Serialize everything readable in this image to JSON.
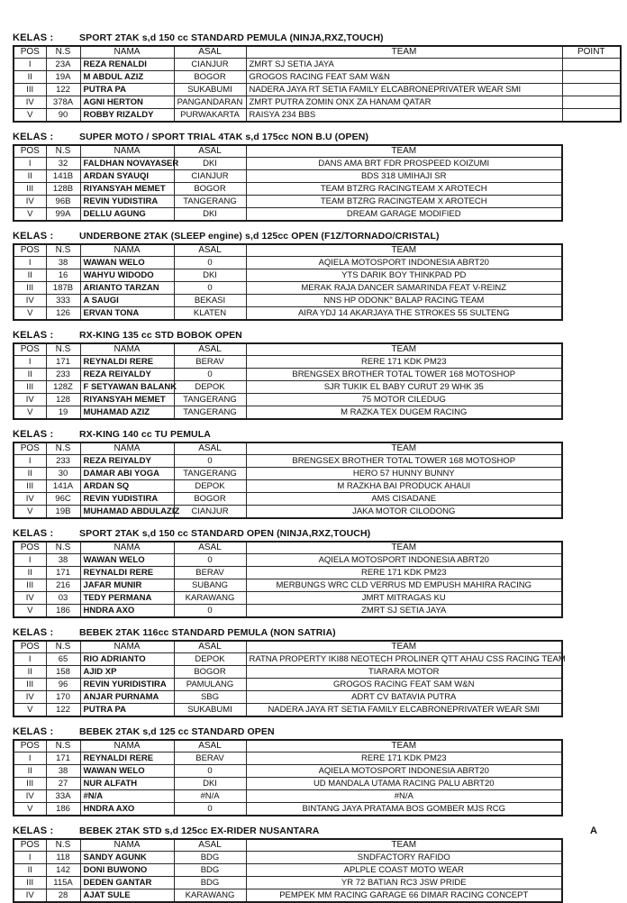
{
  "page": {
    "kelas_label": "KELAS :",
    "headers": [
      "POS",
      "N.S",
      "NAMA",
      "ASAL",
      "TEAM"
    ],
    "point_header": "POINT"
  },
  "row_fields": [
    "pos",
    "ns",
    "nama",
    "asal",
    "team"
  ],
  "sections": [
    {
      "title": "SPORT 2TAK s,d 150 cc STANDARD PEMULA (NINJA,RXZ,TOUCH)",
      "has_point": true,
      "team_align": "left",
      "rows": [
        [
          "I",
          "23A",
          "REZA RENALDI",
          "CIANJUR",
          "ZMRT SJ SETIA JAYA"
        ],
        [
          "II",
          "19A",
          "M ABDUL AZIZ",
          "BOGOR",
          "GROGOS RACING FEAT SAM W&N"
        ],
        [
          "III",
          "122",
          "PUTRA PA",
          "SUKABUMI",
          "NADERA JAYA RT SETIA FAMILY ELCABRONEPRIVATER WEAR SMI"
        ],
        [
          "IV",
          "378A",
          "AGNI HERTON",
          "PANGANDARAN",
          "ZMRT PUTRA ZOMIN ONX ZA HANAM QATAR"
        ],
        [
          "V",
          "90",
          "ROBBY RIZALDY",
          "PURWAKARTA",
          "RAISYA 234 BBS"
        ]
      ]
    },
    {
      "title": "SUPER MOTO / SPORT TRIAL 4TAK s,d 175cc NON B.U (OPEN)",
      "has_point": false,
      "team_align": "center",
      "rows": [
        [
          "I",
          "32",
          "FALDHAN NOVAYASER",
          "DKI",
          "DANS AMA BRT FDR PROSPEED KOIZUMI"
        ],
        [
          "II",
          "141B",
          "ARDAN SYAUQI",
          "CIANJUR",
          "BDS 318 UMIHAJI SR"
        ],
        [
          "III",
          "128B",
          "RIYANSYAH MEMET",
          "BOGOR",
          "TEAM BTZRG RACINGTEAM X AROTECH"
        ],
        [
          "IV",
          "96B",
          "REVIN YUDISTIRA",
          "TANGERANG",
          "TEAM BTZRG RACINGTEAM X AROTECH"
        ],
        [
          "V",
          "99A",
          "DELLU AGUNG",
          "DKI",
          "DREAM GARAGE MODIFIED"
        ]
      ]
    },
    {
      "title": "UNDERBONE 2TAK (SLEEP engine) s,d 125cc OPEN (F1Z/TORNADO/CRISTAL)",
      "has_point": false,
      "team_align": "center",
      "rows": [
        [
          "I",
          "38",
          "WAWAN WELO",
          "0",
          "AQIELA MOTOSPORT INDONESIA ABRT20"
        ],
        [
          "II",
          "16",
          "WAHYU WIDODO",
          "DKI",
          "YTS DARIK BOY THINKPAD PD"
        ],
        [
          "III",
          "187B",
          "ARIANTO TARZAN",
          "0",
          "MERAK RAJA DANCER SAMARINDA FEAT V-REINZ"
        ],
        [
          "IV",
          "333",
          "A SAUGI",
          "BEKASI",
          "NNS HP ODONK\" BALAP RACING TEAM"
        ],
        [
          "V",
          "126",
          "ERVAN TONA",
          "KLATEN",
          "AIRA YDJ 14 AKARJAYA THE STROKES 55 SULTENG"
        ]
      ]
    },
    {
      "title": "RX-KING 135 cc STD BOBOK OPEN",
      "has_point": false,
      "team_align": "center",
      "rows": [
        [
          "I",
          "171",
          "REYNALDI RERE",
          "BERAV",
          "RERE 171 KDK PM23"
        ],
        [
          "II",
          "233",
          "REZA REIYALDY",
          "0",
          "BRENGSEX BROTHER TOTAL TOWER 168 MOTOSHOP"
        ],
        [
          "III",
          "128Z",
          "F SETYAWAN BALANK",
          "DEPOK",
          "SJR TUKIK EL BABY CURUT 29 WHK 35"
        ],
        [
          "IV",
          "128",
          "RIYANSYAH MEMET",
          "TANGERANG",
          "75 MOTOR CILEDUG"
        ],
        [
          "V",
          "19",
          "MUHAMAD AZIZ",
          "TANGERANG",
          "M RAZKA TEX DUGEM RACING"
        ]
      ]
    },
    {
      "title": "RX-KING 140 cc TU PEMULA",
      "has_point": false,
      "team_align": "center",
      "rows": [
        [
          "I",
          "233",
          "REZA REIYALDY",
          "0",
          "BRENGSEX BROTHER TOTAL TOWER 168 MOTOSHOP"
        ],
        [
          "II",
          "30",
          "DAMAR ABI YOGA",
          "TANGERANG",
          "HERO 57 HUNNY BUNNY"
        ],
        [
          "III",
          "141A",
          "ARDAN SQ",
          "DEPOK",
          "M RAZKHA BAI PRODUCK AHAUI"
        ],
        [
          "IV",
          "96C",
          "REVIN YUDISTIRA",
          "BOGOR",
          "AMS CISADANE"
        ],
        [
          "V",
          "19B",
          "MUHAMAD ABDULAZIZ",
          "CIANJUR",
          "JAKA MOTOR CILODONG"
        ]
      ]
    },
    {
      "title": "SPORT 2TAK s,d 150 cc STANDARD OPEN (NINJA,RXZ,TOUCH)",
      "has_point": false,
      "team_align": "center",
      "rows": [
        [
          "I",
          "38",
          "WAWAN WELO",
          "0",
          "AQIELA MOTOSPORT INDONESIA ABRT20"
        ],
        [
          "II",
          "171",
          "REYNALDI RERE",
          "BERAV",
          "RERE 171 KDK PM23"
        ],
        [
          "III",
          "216",
          "JAFAR MUNIR",
          "SUBANG",
          "MERBUNGS WRC CLD VERRUS MD EMPUSH MAHIRA RACING"
        ],
        [
          "IV",
          "03",
          "TEDY PERMANA",
          "KARAWANG",
          "JMRT MITRAGAS KU"
        ],
        [
          "V",
          "186",
          "HNDRA AXO",
          "0",
          "ZMRT SJ SETIA JAYA"
        ]
      ]
    },
    {
      "title": "BEBEK 2TAK 116cc STANDARD PEMULA (NON SATRIA)",
      "has_point": false,
      "team_align": "center",
      "rows": [
        [
          "I",
          "65",
          "RIO ADRIANTO",
          "DEPOK",
          "RATNA PROPERTY IKI88 NEOTECH PROLINER QTT AHAU CSS RACING TEAM"
        ],
        [
          "II",
          "158",
          "AJID XP",
          "BOGOR",
          "TIARARA MOTOR"
        ],
        [
          "III",
          "96",
          "REVIN YURIDISTIRA",
          "PAMULANG",
          "GROGOS RACING FEAT SAM W&N"
        ],
        [
          "IV",
          "170",
          "ANJAR PURNAMA",
          "SBG",
          "ADRT CV BATAVIA PUTRA"
        ],
        [
          "V",
          "122",
          "PUTRA PA",
          "SUKABUMI",
          "NADERA JAYA RT SETIA FAMILY ELCABRONEPRIVATER WEAR SMI"
        ]
      ]
    },
    {
      "title": "BEBEK 2TAK s,d 125 cc STANDARD OPEN",
      "has_point": false,
      "team_align": "center",
      "rows": [
        [
          "I",
          "171",
          "REYNALDI RERE",
          "BERAV",
          "RERE 171 KDK PM23"
        ],
        [
          "II",
          "38",
          "WAWAN WELO",
          "0",
          "AQIELA MOTOSPORT INDONESIA ABRT20"
        ],
        [
          "III",
          "27",
          "NUR ALFATH",
          "DKI",
          "UD MANDALA UTAMA RACING PALU ABRT20"
        ],
        [
          "IV",
          "33A",
          "#N/A",
          "#N/A",
          "#N/A"
        ],
        [
          "V",
          "186",
          "HNDRA AXO",
          "0",
          "BINTANG JAYA PRATAMA BOS GOMBER MJS RCG"
        ]
      ]
    },
    {
      "title": "BEBEK 2TAK STD s,d 125cc EX-RIDER NUSANTARA",
      "has_point": false,
      "team_align": "center",
      "note": "A",
      "rows": [
        [
          "I",
          "118",
          "SANDY AGUNK",
          "BDG",
          "SNDFACTORY RAFIDO"
        ],
        [
          "II",
          "142",
          "DONI BUWONO",
          "BDG",
          "APLPLE COAST MOTO WEAR"
        ],
        [
          "III",
          "115A",
          "DEDEN GANTAR",
          "BDG",
          "YR 72 BATIAN RC3 JSW PRIDE"
        ],
        [
          "IV",
          "28",
          "AJAT SULE",
          "KARAWANG",
          "PEMPEK MM RACING GARAGE 66 DIMAR RACING CONCEPT"
        ]
      ]
    }
  ]
}
